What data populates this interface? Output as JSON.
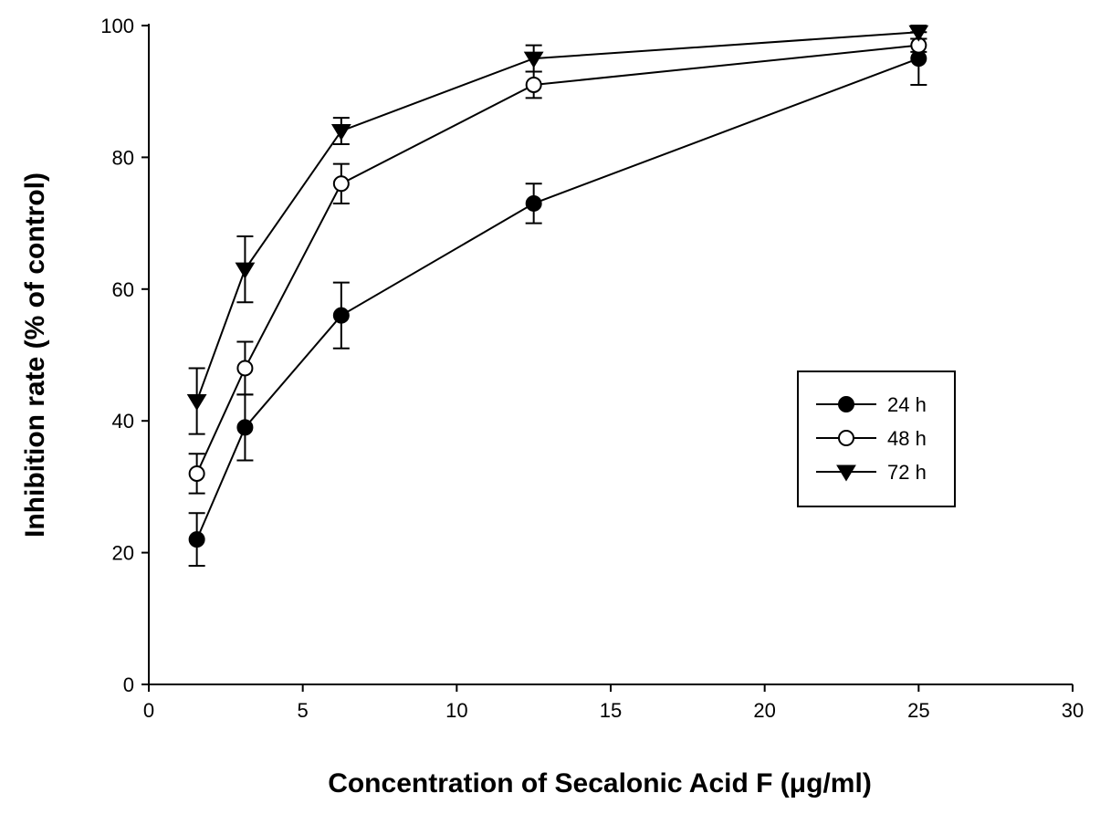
{
  "chart_data": {
    "type": "line",
    "title": "",
    "xlabel": "Concentration of Secalonic Acid F (μg/ml)",
    "ylabel": "Inhibition rate (% of control)",
    "xlim": [
      0,
      30
    ],
    "ylim": [
      0,
      100
    ],
    "x_ticks": [
      0,
      5,
      10,
      15,
      20,
      25,
      30
    ],
    "y_ticks": [
      0,
      20,
      40,
      60,
      80,
      100
    ],
    "x_tick_labels": [
      "0",
      "5",
      "10",
      "15",
      "20",
      "25",
      "30"
    ],
    "y_tick_labels": [
      "0",
      "20",
      "40",
      "60",
      "80",
      "100"
    ],
    "grid": false,
    "legend_position": "right",
    "x": [
      1.56,
      3.125,
      6.25,
      12.5,
      25
    ],
    "series": [
      {
        "name": "24 h",
        "marker": "filled-circle",
        "values": [
          22,
          39,
          56,
          73,
          95
        ],
        "errors": [
          4,
          5,
          5,
          3,
          4
        ]
      },
      {
        "name": "48 h",
        "marker": "open-circle",
        "values": [
          32,
          48,
          76,
          91,
          97
        ],
        "errors": [
          3,
          4,
          3,
          2,
          1
        ]
      },
      {
        "name": "72 h",
        "marker": "filled-triangle-down",
        "values": [
          43,
          63,
          84,
          95,
          99
        ],
        "errors": [
          5,
          5,
          2,
          2,
          1
        ]
      }
    ]
  },
  "colors": {
    "line": "#000000",
    "background": "#ffffff"
  }
}
